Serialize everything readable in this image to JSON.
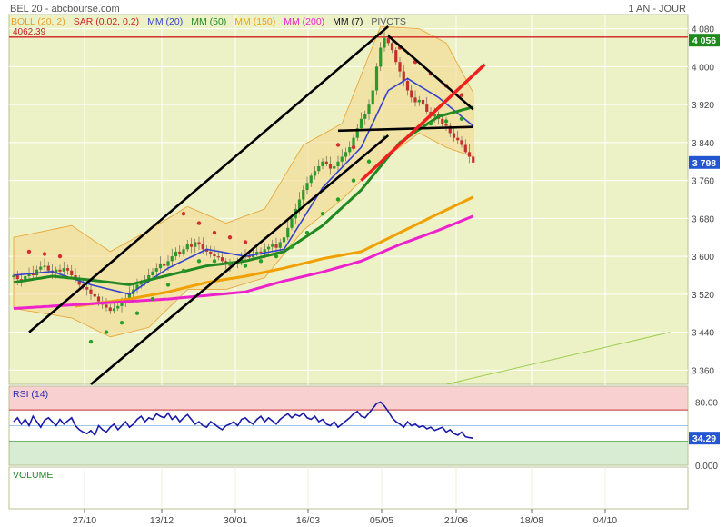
{
  "header": {
    "title": "BEL 20 - abcbourse.com",
    "period": "1 AN - JOUR"
  },
  "legend": [
    {
      "label": "BOLL (20, 2)",
      "color": "#e8a030"
    },
    {
      "label": "SAR (0.02, 0.2)",
      "color": "#cc2222"
    },
    {
      "label": "MM (20)",
      "color": "#3344cc"
    },
    {
      "label": "MM (50)",
      "color": "#228822"
    },
    {
      "label": "MM (150)",
      "color": "#f0a000"
    },
    {
      "label": "MM (200)",
      "color": "#ee22cc"
    },
    {
      "label": "MM (7)",
      "color": "#111111"
    },
    {
      "label": "PIVOTS",
      "color": "#555555"
    }
  ],
  "price_panel": {
    "hline_label": "4062.39",
    "hline_badge": "4 056",
    "last_badge": "3 798",
    "y_ticks": [
      "4 080",
      "4 000",
      "3 920",
      "3 840",
      "3 760",
      "3 680",
      "3 600",
      "3 520",
      "3 440",
      "3 360"
    ]
  },
  "rsi_panel": {
    "label": "RSI (14)",
    "y_ticks": [
      "80.00",
      "0.000"
    ],
    "last_badge": "34.29"
  },
  "volume_panel": {
    "label": "VOLUME"
  },
  "x_ticks": [
    "27/10",
    "13/12",
    "30/01",
    "16/03",
    "05/05",
    "21/06",
    "18/08",
    "04/10"
  ],
  "chart_data": {
    "type": "line",
    "title": "BEL 20 - abcbourse.com",
    "period": "1 AN - JOUR",
    "x_ticks": [
      "27/10",
      "13/12",
      "30/01",
      "16/03",
      "05/05",
      "21/06",
      "18/08",
      "04/10"
    ],
    "price": {
      "ylim": [
        3330,
        4110
      ],
      "y_ticks": [
        3360,
        3440,
        3520,
        3600,
        3680,
        3760,
        3840,
        3920,
        4000,
        4080
      ],
      "horizontal_line": 4062.39,
      "last": 3798,
      "close": [
        3560,
        3552,
        3548,
        3558,
        3565,
        3560,
        3572,
        3578,
        3580,
        3570,
        3565,
        3572,
        3568,
        3575,
        3570,
        3560,
        3552,
        3540,
        3535,
        3530,
        3520,
        3515,
        3505,
        3498,
        3492,
        3485,
        3490,
        3495,
        3505,
        3512,
        3520,
        3530,
        3540,
        3545,
        3550,
        3560,
        3568,
        3575,
        3585,
        3580,
        3590,
        3600,
        3610,
        3605,
        3615,
        3625,
        3620,
        3630,
        3625,
        3615,
        3610,
        3605,
        3600,
        3598,
        3590,
        3585,
        3580,
        3585,
        3590,
        3598,
        3600,
        3598,
        3605,
        3610,
        3608,
        3615,
        3620,
        3625,
        3618,
        3630,
        3640,
        3660,
        3680,
        3700,
        3720,
        3740,
        3755,
        3770,
        3780,
        3790,
        3800,
        3795,
        3785,
        3790,
        3800,
        3810,
        3820,
        3830,
        3850,
        3870,
        3890,
        3900,
        3920,
        3950,
        4000,
        4040,
        4060,
        4050,
        4035,
        4010,
        3990,
        3970,
        3950,
        3935,
        3925,
        3930,
        3920,
        3905,
        3895,
        3900,
        3890,
        3880,
        3875,
        3860,
        3850,
        3845,
        3835,
        3820,
        3810,
        3798
      ],
      "series": [
        {
          "name": "MM (20)",
          "color": "#3344cc",
          "anchors": [
            [
              0,
              3560
            ],
            [
              10,
              3568
            ],
            [
              20,
              3540
            ],
            [
              30,
              3520
            ],
            [
              40,
              3575
            ],
            [
              50,
              3615
            ],
            [
              60,
              3600
            ],
            [
              70,
              3615
            ],
            [
              80,
              3745
            ],
            [
              90,
              3830
            ],
            [
              97,
              3950
            ],
            [
              102,
              3975
            ],
            [
              110,
              3935
            ],
            [
              119,
              3875
            ]
          ]
        },
        {
          "name": "MM (50)",
          "color": "#228822",
          "anchors": [
            [
              0,
              3545
            ],
            [
              10,
              3558
            ],
            [
              20,
              3550
            ],
            [
              30,
              3540
            ],
            [
              40,
              3560
            ],
            [
              50,
              3580
            ],
            [
              60,
              3590
            ],
            [
              70,
              3610
            ],
            [
              80,
              3665
            ],
            [
              90,
              3740
            ],
            [
              100,
              3840
            ],
            [
              110,
              3895
            ],
            [
              119,
              3915
            ]
          ]
        },
        {
          "name": "MM (150)",
          "color": "#f0a000",
          "anchors": [
            [
              16,
              3495
            ],
            [
              30,
              3510
            ],
            [
              40,
              3525
            ],
            [
              50,
              3545
            ],
            [
              60,
              3558
            ],
            [
              70,
              3575
            ],
            [
              80,
              3595
            ],
            [
              90,
              3610
            ],
            [
              100,
              3650
            ],
            [
              110,
              3690
            ],
            [
              119,
              3725
            ]
          ]
        },
        {
          "name": "MM (200)",
          "color": "#ee22cc",
          "anchors": [
            [
              0,
              3490
            ],
            [
              20,
              3500
            ],
            [
              40,
              3510
            ],
            [
              60,
              3525
            ],
            [
              70,
              3548
            ],
            [
              80,
              3567
            ],
            [
              90,
              3590
            ],
            [
              100,
              3625
            ],
            [
              110,
              3655
            ],
            [
              119,
              3685
            ]
          ]
        }
      ],
      "bollinger": {
        "name": "BOLL (20, 2)",
        "upper": [
          [
            0,
            3640
          ],
          [
            15,
            3665
          ],
          [
            25,
            3610
          ],
          [
            35,
            3655
          ],
          [
            45,
            3705
          ],
          [
            55,
            3670
          ],
          [
            65,
            3700
          ],
          [
            75,
            3835
          ],
          [
            85,
            3880
          ],
          [
            95,
            4085
          ],
          [
            105,
            4080
          ],
          [
            112,
            4050
          ],
          [
            119,
            3945
          ]
        ],
        "lower": [
          [
            0,
            3490
          ],
          [
            15,
            3470
          ],
          [
            25,
            3430
          ],
          [
            35,
            3450
          ],
          [
            45,
            3530
          ],
          [
            55,
            3530
          ],
          [
            65,
            3555
          ],
          [
            75,
            3655
          ],
          [
            85,
            3720
          ],
          [
            95,
            3800
          ],
          [
            105,
            3860
          ],
          [
            112,
            3830
          ],
          [
            119,
            3810
          ]
        ]
      },
      "sar": {
        "name": "SAR (0.02, 0.2)",
        "up_dots": [
          [
            20,
            3420
          ],
          [
            24,
            3440
          ],
          [
            28,
            3460
          ],
          [
            32,
            3480
          ],
          [
            36,
            3510
          ],
          [
            40,
            3540
          ],
          [
            44,
            3570
          ],
          [
            48,
            3590
          ],
          [
            52,
            3590
          ],
          [
            56,
            3585
          ],
          [
            60,
            3580
          ],
          [
            64,
            3590
          ],
          [
            68,
            3600
          ],
          [
            72,
            3620
          ],
          [
            76,
            3650
          ],
          [
            80,
            3690
          ],
          [
            84,
            3720
          ],
          [
            88,
            3760
          ],
          [
            92,
            3800
          ],
          [
            96,
            3850
          ],
          [
            108,
            3880
          ],
          [
            112,
            3885
          ],
          [
            116,
            3890
          ]
        ],
        "down_dots": [
          [
            4,
            3610
          ],
          [
            8,
            3605
          ],
          [
            12,
            3600
          ],
          [
            44,
            3690
          ],
          [
            48,
            3670
          ],
          [
            52,
            3650
          ],
          [
            56,
            3640
          ],
          [
            60,
            3630
          ],
          [
            84,
            3835
          ],
          [
            88,
            3830
          ],
          [
            100,
            4040
          ],
          [
            104,
            4010
          ],
          [
            108,
            3985
          ],
          [
            112,
            3960
          ],
          [
            116,
            3940
          ]
        ]
      },
      "trendlines": [
        {
          "name": "channel-lower",
          "color": "#000000",
          "from": [
            20,
            3330
          ],
          "to": [
            97,
            3855
          ]
        },
        {
          "name": "channel-upper",
          "color": "#000000",
          "from": [
            4,
            3440
          ],
          "to": [
            97,
            4085
          ]
        },
        {
          "name": "descending",
          "color": "#000000",
          "from": [
            97,
            4065
          ],
          "to": [
            119,
            3910
          ]
        },
        {
          "name": "flat",
          "color": "#000000",
          "from": [
            84,
            3865
          ],
          "to": [
            119,
            3873
          ]
        },
        {
          "name": "red-breakout",
          "color": "#ee2020",
          "from": [
            90,
            3760
          ],
          "to": [
            122,
            4005
          ]
        },
        {
          "name": "green-long",
          "color": "#9ccc50",
          "from": [
            112,
            3330
          ],
          "to": [
            170,
            3440
          ]
        }
      ]
    },
    "rsi": {
      "name": "RSI (14)",
      "ylim": [
        0,
        100
      ],
      "y_ticks": [
        0,
        80
      ],
      "overbought": 70,
      "oversold": 30,
      "last": 34.29,
      "values": [
        55,
        60,
        52,
        58,
        50,
        62,
        55,
        48,
        57,
        60,
        55,
        50,
        58,
        52,
        56,
        60,
        50,
        45,
        42,
        40,
        44,
        38,
        50,
        45,
        42,
        48,
        52,
        45,
        50,
        55,
        48,
        52,
        58,
        62,
        55,
        60,
        58,
        65,
        62,
        60,
        66,
        58,
        62,
        55,
        60,
        64,
        58,
        52,
        55,
        50,
        48,
        55,
        52,
        48,
        45,
        50,
        52,
        55,
        50,
        58,
        60,
        55,
        52,
        58,
        62,
        55,
        60,
        56,
        52,
        58,
        62,
        65,
        60,
        64,
        62,
        66,
        60,
        58,
        62,
        55,
        58,
        52,
        50,
        55,
        48,
        52,
        56,
        60,
        65,
        68,
        62,
        60,
        66,
        72,
        78,
        80,
        75,
        68,
        60,
        55,
        52,
        48,
        55,
        50,
        52,
        48,
        50,
        46,
        48,
        44,
        46,
        48,
        42,
        45,
        40,
        38,
        42,
        36,
        35,
        34.29
      ]
    },
    "volume": {
      "name": "VOLUME"
    }
  }
}
